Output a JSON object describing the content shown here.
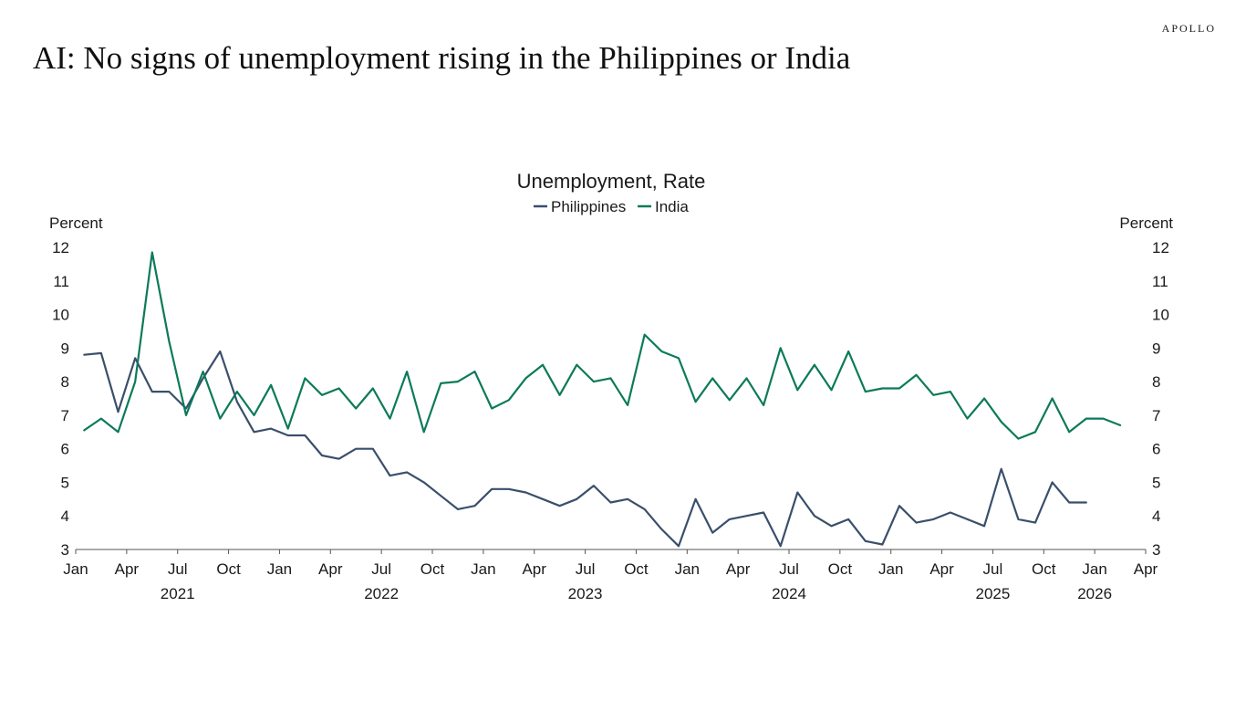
{
  "header": {
    "brand": "APOLLO",
    "title": "AI: No signs of unemployment rising in the Philippines or India"
  },
  "colors": {
    "philippines": "#3a4f6b",
    "india": "#0c7a5a",
    "axis": "#555555"
  },
  "chart_data": {
    "type": "line",
    "title": "Unemployment, Rate",
    "ylabel_left": "Percent",
    "ylabel_right": "Percent",
    "ylim": [
      3,
      12
    ],
    "yticks": [
      3,
      4,
      5,
      6,
      7,
      8,
      9,
      10,
      11,
      12
    ],
    "x_range_months": [
      0,
      63
    ],
    "month_ticks": [
      {
        "m": 0,
        "label": "Jan"
      },
      {
        "m": 3,
        "label": "Apr"
      },
      {
        "m": 6,
        "label": "Jul"
      },
      {
        "m": 9,
        "label": "Oct"
      },
      {
        "m": 12,
        "label": "Jan"
      },
      {
        "m": 15,
        "label": "Apr"
      },
      {
        "m": 18,
        "label": "Jul"
      },
      {
        "m": 21,
        "label": "Oct"
      },
      {
        "m": 24,
        "label": "Jan"
      },
      {
        "m": 27,
        "label": "Apr"
      },
      {
        "m": 30,
        "label": "Jul"
      },
      {
        "m": 33,
        "label": "Oct"
      },
      {
        "m": 36,
        "label": "Jan"
      },
      {
        "m": 39,
        "label": "Apr"
      },
      {
        "m": 42,
        "label": "Jul"
      },
      {
        "m": 45,
        "label": "Oct"
      },
      {
        "m": 48,
        "label": "Jan"
      },
      {
        "m": 51,
        "label": "Apr"
      },
      {
        "m": 54,
        "label": "Jul"
      },
      {
        "m": 57,
        "label": "Oct"
      },
      {
        "m": 60,
        "label": "Jan"
      },
      {
        "m": 63,
        "label": "Apr"
      }
    ],
    "year_ticks": [
      {
        "m": 6,
        "label": "2021"
      },
      {
        "m": 18,
        "label": "2022"
      },
      {
        "m": 30,
        "label": "2023"
      },
      {
        "m": 42,
        "label": "2024"
      },
      {
        "m": 54,
        "label": "2025"
      },
      {
        "m": 60,
        "label": "2026"
      }
    ],
    "series": [
      {
        "name": "Philippines",
        "start_month": 0.5,
        "values": [
          8.8,
          8.85,
          7.1,
          8.7,
          7.7,
          7.7,
          7.2,
          8.1,
          8.9,
          7.4,
          6.5,
          6.6,
          6.4,
          6.4,
          5.8,
          5.7,
          6.0,
          6.0,
          5.2,
          5.3,
          5.0,
          4.6,
          4.2,
          4.3,
          4.8,
          4.8,
          4.7,
          4.5,
          4.3,
          4.5,
          4.9,
          4.4,
          4.5,
          4.2,
          3.6,
          3.1,
          4.5,
          3.5,
          3.9,
          4.0,
          4.1,
          3.1,
          4.7,
          4.0,
          3.7,
          3.9,
          3.25,
          3.15,
          4.3,
          3.8,
          3.9,
          4.1,
          3.9,
          3.7,
          5.4,
          3.9,
          3.8,
          5.0,
          4.4,
          4.4
        ]
      },
      {
        "name": "India",
        "start_month": 0.5,
        "values": [
          6.55,
          6.9,
          6.5,
          8.0,
          11.85,
          9.2,
          7.0,
          8.3,
          6.9,
          7.7,
          7.0,
          7.9,
          6.6,
          8.1,
          7.6,
          7.8,
          7.2,
          7.8,
          6.9,
          8.3,
          6.5,
          7.95,
          8.0,
          8.3,
          7.2,
          7.45,
          8.1,
          8.5,
          7.6,
          8.5,
          8.0,
          8.1,
          7.3,
          9.4,
          8.9,
          8.7,
          7.4,
          8.1,
          7.45,
          8.1,
          7.3,
          9.0,
          7.75,
          8.5,
          7.75,
          8.9,
          7.7,
          7.8,
          7.8,
          8.2,
          7.6,
          7.7,
          6.9,
          7.5,
          6.8,
          6.3,
          6.5,
          7.5,
          6.5,
          6.9,
          6.9,
          6.7
        ]
      }
    ]
  }
}
